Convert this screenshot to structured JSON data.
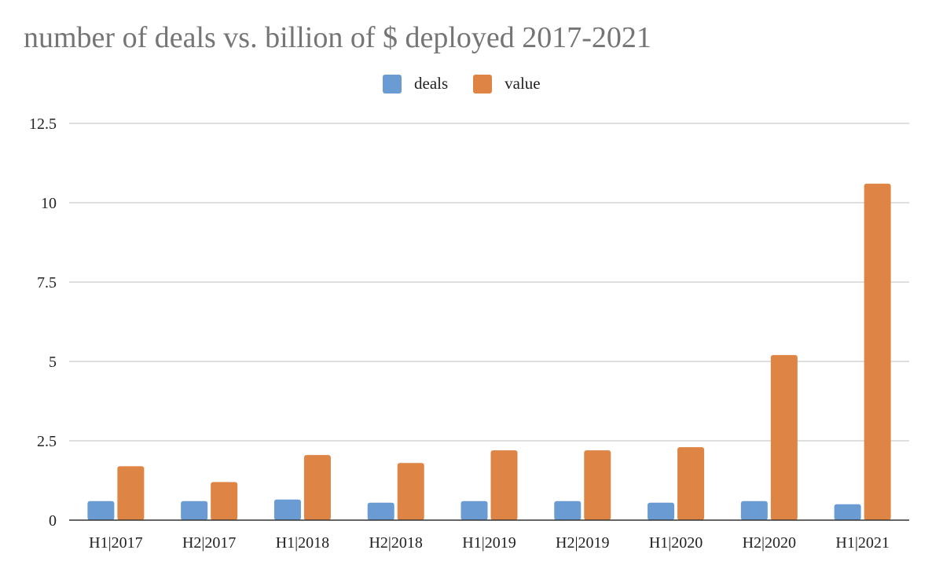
{
  "chart_data": {
    "type": "bar",
    "title": "number of deals vs. billion of $ deployed 2017-2021",
    "xlabel": "",
    "ylabel": "",
    "categories": [
      "H1|2017",
      "H2|2017",
      "H1|2018",
      "H2|2018",
      "H1|2019",
      "H2|2019",
      "H1|2020",
      "H2|2020",
      "H1|2021"
    ],
    "series": [
      {
        "name": "deals",
        "color": "#6a9bd3",
        "values": [
          0.6,
          0.6,
          0.65,
          0.55,
          0.6,
          0.6,
          0.55,
          0.6,
          0.5
        ]
      },
      {
        "name": "value",
        "color": "#de8445",
        "values": [
          1.7,
          1.2,
          2.05,
          1.8,
          2.2,
          2.2,
          2.3,
          5.2,
          10.6
        ]
      }
    ],
    "ylim": [
      0,
      12.5
    ],
    "yticks": [
      "0",
      "2.5",
      "5",
      "7.5",
      "10",
      "12.5"
    ],
    "grid": true,
    "legend_position": "top-center"
  }
}
